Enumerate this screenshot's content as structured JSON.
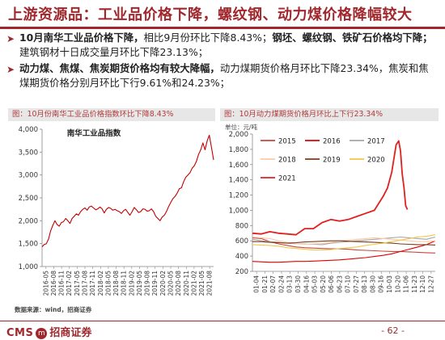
{
  "header": {
    "title": "上游资源品：工业品价格下降，螺纹钢、动力煤价格降幅较大"
  },
  "bullets": [
    {
      "bold": "10月南华工业品价格下降，",
      "normal": "相比9月份环比下降8.43%；",
      "bold2": "钢坯、螺纹钢、铁矿石价格均下降；",
      "normal2": "建筑钢材十日成交量月环比下降23.13%；"
    },
    {
      "bold": "动力煤、焦煤、焦炭期货价格均有较大降幅，",
      "normal": "动力煤期货价格月环比下降23.34%，焦炭和焦煤期货价格分别月环比下行9.61%和24.23%；",
      "bold2": "",
      "normal2": ""
    }
  ],
  "panel1": {
    "title": "图：10月份南华工业品价格指数环比下降8.43%"
  },
  "panel2": {
    "title": "图：10月动力煤期货价格月环比上下行23.34%"
  },
  "source": "数据来源：wind，招商证券",
  "footer": {
    "logo_text": "CMS",
    "logo_seal": "m",
    "firm": "招商证券",
    "page": "- 62 -"
  },
  "colors": {
    "accent": "#a0282d",
    "line": "#c00000",
    "c2015": "#c8463c",
    "c2016": "#e00000",
    "c2017": "#a6a6a6",
    "c2018": "#fbc9a7",
    "c2019": "#7a3b1e",
    "c2020": "#f2c64b",
    "c2021": "#e0201f"
  },
  "chart_data": [
    {
      "type": "line",
      "title": "南华工业品指数",
      "xlabel": "",
      "ylabel": "",
      "ylim": [
        1000,
        4000
      ],
      "yticks": [
        "1,000",
        "1,500",
        "2,000",
        "2,500",
        "3,000",
        "3,500",
        "4,000"
      ],
      "x_ticks": [
        "2016-05",
        "2016-08",
        "2016-11",
        "2017-02",
        "2017-05",
        "2017-08",
        "2017-11",
        "2018-02",
        "2018-05",
        "2018-08",
        "2018-11",
        "2019-02",
        "2019-05",
        "2019-08",
        "2019-11",
        "2020-02",
        "2020-05",
        "2020-08",
        "2020-11",
        "2021-02",
        "2021-05",
        "2021-08"
      ],
      "series": [
        {
          "values": [
            [
              0,
              1430
            ],
            [
              0.5,
              1480
            ],
            [
              1,
              1500
            ],
            [
              1.5,
              1600
            ],
            [
              2,
              1780
            ],
            [
              2.5,
              1900
            ],
            [
              3,
              2000
            ],
            [
              3.5,
              1920
            ],
            [
              4,
              1880
            ],
            [
              4.5,
              1960
            ],
            [
              5,
              1980
            ],
            [
              5.5,
              2050
            ],
            [
              6,
              2000
            ],
            [
              6.5,
              1940
            ],
            [
              7,
              2050
            ],
            [
              7.5,
              2100
            ],
            [
              8,
              2150
            ],
            [
              8.5,
              2120
            ],
            [
              9,
              2200
            ],
            [
              9.5,
              2250
            ],
            [
              10,
              2280
            ],
            [
              10.5,
              2230
            ],
            [
              11,
              2300
            ],
            [
              11.5,
              2320
            ],
            [
              12,
              2280
            ],
            [
              12.5,
              2240
            ],
            [
              13,
              2260
            ],
            [
              13.5,
              2300
            ],
            [
              14,
              2260
            ],
            [
              14.5,
              2170
            ],
            [
              15,
              2250
            ],
            [
              15.5,
              2290
            ],
            [
              16,
              2270
            ],
            [
              16.5,
              2230
            ],
            [
              17,
              2250
            ],
            [
              17.5,
              2220
            ],
            [
              18,
              2200
            ],
            [
              18.5,
              2160
            ],
            [
              19,
              2220
            ],
            [
              19.5,
              2250
            ],
            [
              20,
              2180
            ],
            [
              20.5,
              2120
            ],
            [
              21,
              2200
            ],
            [
              21.5,
              2290
            ],
            [
              22,
              2240
            ],
            [
              22.5,
              2180
            ],
            [
              23,
              2200
            ],
            [
              23.5,
              2260
            ],
            [
              24,
              2250
            ],
            [
              24.5,
              2210
            ],
            [
              25,
              2220
            ],
            [
              25.5,
              2260
            ],
            [
              26,
              2200
            ],
            [
              26.5,
              2100
            ],
            [
              27,
              2050
            ],
            [
              27.5,
              2000
            ],
            [
              28,
              2080
            ],
            [
              28.5,
              2120
            ],
            [
              29,
              2200
            ],
            [
              29.5,
              2310
            ],
            [
              30,
              2400
            ],
            [
              30.5,
              2480
            ],
            [
              31,
              2530
            ],
            [
              31.5,
              2600
            ],
            [
              32,
              2700
            ],
            [
              32.5,
              2720
            ],
            [
              33,
              2850
            ],
            [
              33.5,
              2950
            ],
            [
              34,
              3000
            ],
            [
              34.5,
              3050
            ],
            [
              35,
              3150
            ],
            [
              35.5,
              3200
            ],
            [
              36,
              3300
            ],
            [
              36.5,
              3450
            ],
            [
              37,
              3550
            ],
            [
              37.5,
              3700
            ],
            [
              38,
              3550
            ],
            [
              38.5,
              3750
            ],
            [
              39,
              3870
            ],
            [
              39.5,
              3600
            ],
            [
              40,
              3330
            ]
          ]
        }
      ],
      "x_range": [
        0,
        40
      ]
    },
    {
      "type": "line",
      "title": "",
      "unit_label": "单位：元/吨",
      "ylim": [
        200,
        2000
      ],
      "yticks": [
        "200",
        "400",
        "600",
        "800",
        "1,000",
        "1,200",
        "1,400",
        "1,600",
        "1,800",
        "2,000"
      ],
      "x_ticks": [
        "01-04",
        "01-21",
        "02-07",
        "02-24",
        "03-13",
        "03-30",
        "04-16",
        "05-03",
        "05-20",
        "06-06",
        "06-23",
        "07-10",
        "07-27",
        "08-13",
        "08-30",
        "09-16",
        "10-03",
        "10-20",
        "11-06",
        "11-23",
        "12-10",
        "12-27"
      ],
      "series": [
        {
          "name": "2015",
          "values": [
            [
              0,
              640
            ],
            [
              1,
              630
            ],
            [
              2,
              590
            ],
            [
              3,
              560
            ],
            [
              4,
              540
            ],
            [
              5,
              520
            ],
            [
              6,
              510
            ],
            [
              7,
              505
            ],
            [
              8,
              500
            ],
            [
              9,
              495
            ],
            [
              10,
              495
            ],
            [
              11,
              490
            ],
            [
              12,
              480
            ],
            [
              13,
              475
            ],
            [
              14,
              470
            ],
            [
              15,
              465
            ],
            [
              16,
              460
            ],
            [
              17,
              460
            ],
            [
              18,
              455
            ],
            [
              19,
              450
            ],
            [
              20,
              445
            ],
            [
              21,
              440
            ]
          ]
        },
        {
          "name": "2016",
          "values": [
            [
              0,
              330
            ],
            [
              1,
              325
            ],
            [
              2,
              320
            ],
            [
              3,
              320
            ],
            [
              4,
              325
            ],
            [
              5,
              330
            ],
            [
              6,
              330
            ],
            [
              7,
              335
            ],
            [
              8,
              340
            ],
            [
              9,
              345
            ],
            [
              10,
              350
            ],
            [
              11,
              360
            ],
            [
              12,
              370
            ],
            [
              13,
              380
            ],
            [
              14,
              395
            ],
            [
              15,
              410
            ],
            [
              16,
              430
            ],
            [
              17,
              460
            ],
            [
              18,
              490
            ],
            [
              19,
              520
            ],
            [
              20,
              550
            ],
            [
              21,
              600
            ]
          ]
        },
        {
          "name": "2017",
          "values": [
            [
              0,
              620
            ],
            [
              1,
              600
            ],
            [
              2,
              590
            ],
            [
              3,
              580
            ],
            [
              4,
              570
            ],
            [
              5,
              560
            ],
            [
              6,
              560
            ],
            [
              7,
              555
            ],
            [
              8,
              550
            ],
            [
              9,
              570
            ],
            [
              10,
              580
            ],
            [
              11,
              590
            ],
            [
              12,
              600
            ],
            [
              13,
              610
            ],
            [
              14,
              620
            ],
            [
              15,
              630
            ],
            [
              16,
              640
            ],
            [
              17,
              650
            ],
            [
              18,
              640
            ],
            [
              19,
              630
            ],
            [
              20,
              620
            ],
            [
              21,
              650
            ]
          ]
        },
        {
          "name": "2018",
          "values": [
            [
              0,
              650
            ],
            [
              1,
              640
            ],
            [
              2,
              630
            ],
            [
              3,
              600
            ],
            [
              4,
              580
            ],
            [
              5,
              560
            ],
            [
              6,
              555
            ],
            [
              7,
              560
            ],
            [
              8,
              565
            ],
            [
              9,
              580
            ],
            [
              10,
              600
            ],
            [
              11,
              610
            ],
            [
              12,
              620
            ],
            [
              13,
              630
            ],
            [
              14,
              640
            ],
            [
              15,
              630
            ],
            [
              16,
              620
            ],
            [
              17,
              610
            ],
            [
              18,
              600
            ],
            [
              19,
              590
            ],
            [
              20,
              590
            ],
            [
              21,
              600
            ]
          ]
        },
        {
          "name": "2019",
          "values": [
            [
              0,
              590
            ],
            [
              1,
              590
            ],
            [
              2,
              580
            ],
            [
              3,
              575
            ],
            [
              4,
              570
            ],
            [
              5,
              575
            ],
            [
              6,
              585
            ],
            [
              7,
              590
            ],
            [
              8,
              595
            ],
            [
              9,
              600
            ],
            [
              10,
              600
            ],
            [
              11,
              595
            ],
            [
              12,
              590
            ],
            [
              13,
              585
            ],
            [
              14,
              580
            ],
            [
              15,
              575
            ],
            [
              16,
              570
            ],
            [
              17,
              560
            ],
            [
              18,
              555
            ],
            [
              19,
              550
            ],
            [
              20,
              550
            ],
            [
              21,
              545
            ]
          ]
        },
        {
          "name": "2020",
          "values": [
            [
              0,
              550
            ],
            [
              1,
              545
            ],
            [
              2,
              540
            ],
            [
              3,
              530
            ],
            [
              4,
              510
            ],
            [
              5,
              500
            ],
            [
              6,
              490
            ],
            [
              7,
              480
            ],
            [
              8,
              480
            ],
            [
              9,
              485
            ],
            [
              10,
              500
            ],
            [
              11,
              510
            ],
            [
              12,
              520
            ],
            [
              13,
              540
            ],
            [
              14,
              555
            ],
            [
              15,
              570
            ],
            [
              16,
              590
            ],
            [
              17,
              610
            ],
            [
              18,
              630
            ],
            [
              19,
              650
            ],
            [
              20,
              660
            ],
            [
              21,
              680
            ]
          ]
        },
        {
          "name": "2021",
          "values": [
            [
              0,
              700
            ],
            [
              1,
              690
            ],
            [
              2,
              720
            ],
            [
              3,
              700
            ],
            [
              4,
              690
            ],
            [
              5,
              680
            ],
            [
              6,
              760
            ],
            [
              7,
              760
            ],
            [
              8,
              840
            ],
            [
              9,
              880
            ],
            [
              10,
              860
            ],
            [
              11,
              880
            ],
            [
              12,
              920
            ],
            [
              13,
              960
            ],
            [
              14,
              1000
            ],
            [
              15,
              1180
            ],
            [
              15.5,
              1290
            ],
            [
              16,
              1500
            ],
            [
              16.5,
              1860
            ],
            [
              16.8,
              1910
            ],
            [
              17,
              1780
            ],
            [
              17.2,
              1480
            ],
            [
              17.4,
              1300
            ],
            [
              17.6,
              1060
            ],
            [
              17.8,
              1010
            ]
          ]
        }
      ],
      "x_range": [
        0,
        21
      ],
      "legend": "top-left"
    }
  ]
}
